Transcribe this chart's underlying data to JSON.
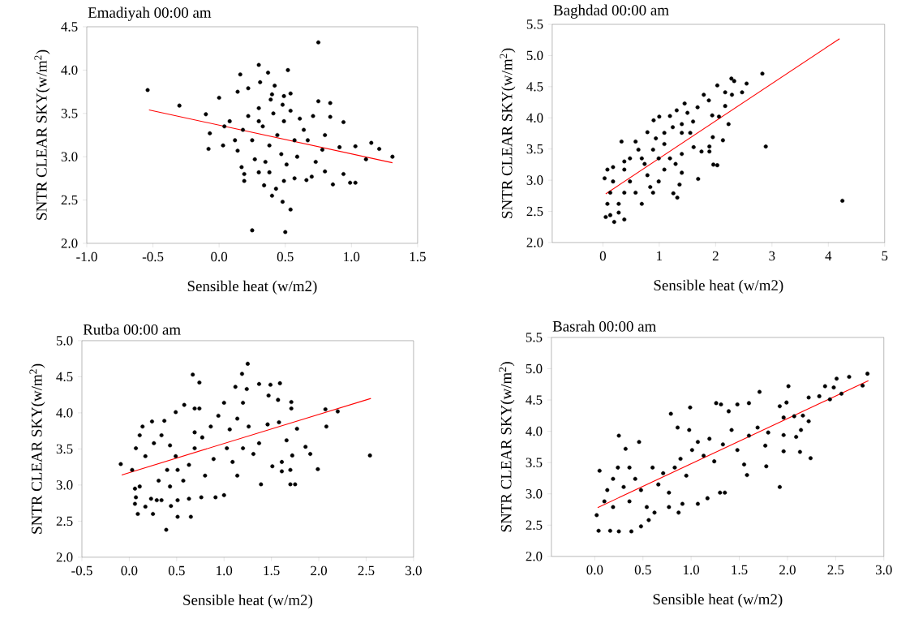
{
  "chart_data": [
    {
      "type": "scatter",
      "title": "Emadiyah 00:00 am",
      "xlabel": "Sensible heat (w/m2)",
      "ylabel": "SNTR CLEAR SKY(w/m$^{2}$)",
      "xlim": [
        -1,
        1.5
      ],
      "ylim": [
        2,
        4.5
      ],
      "xticks": [
        {
          "value": -1,
          "label": "-1.0"
        },
        -0.5,
        {
          "value": 0,
          "label": "0.0"
        },
        0.5,
        {
          "value": 1,
          "label": "1.0"
        },
        1.5
      ],
      "yticks": [
        {
          "value": 2,
          "label": "2.0"
        },
        2.5,
        {
          "value": 3,
          "label": "3.0"
        },
        3.5,
        {
          "value": 4,
          "label": "4.0"
        },
        4.5
      ],
      "series": [
        {
          "color": "#000000",
          "x": [
            -0.54,
            -0.3,
            0.75,
            0.3,
            0.52,
            0.16,
            0.37,
            0.0,
            -0.08,
            -0.07,
            -0.1,
            0.03,
            0.25,
            0.5,
            0.54,
            0.48,
            0.4,
            0.94,
            0.94,
            0.99,
            1.03,
            1.03,
            1.11,
            1.15,
            1.21,
            1.31,
            0.86,
            0.84,
            0.84,
            0.8,
            0.75,
            0.78,
            0.8,
            0.66,
            0.91,
            0.19,
            0.19,
            0.14,
            0.22,
            0.42,
            0.39,
            0.31,
            0.49,
            0.54,
            0.43,
            0.34,
            0.57,
            0.7,
            0.08,
            0.12,
            0.14,
            0.18,
            0.22,
            0.25,
            0.27,
            0.3,
            0.33,
            0.35,
            0.38,
            0.41,
            0.44,
            0.47,
            0.49,
            0.51,
            0.54,
            0.57,
            0.59,
            0.61,
            0.64,
            0.67,
            0.71,
            0.73,
            0.3,
            0.38,
            0.49,
            0.4,
            0.48,
            0.17,
            0.04,
            0.3
          ],
          "values": [
            3.77,
            3.59,
            4.32,
            4.06,
            4.0,
            3.95,
            3.97,
            3.68,
            3.09,
            3.27,
            3.49,
            3.13,
            2.15,
            2.13,
            2.39,
            2.48,
            2.55,
            3.4,
            2.8,
            2.7,
            2.7,
            3.12,
            2.97,
            3.16,
            3.09,
            3.0,
            2.68,
            3.62,
            3.46,
            3.25,
            3.64,
            3.08,
            2.83,
            2.73,
            3.11,
            2.72,
            2.8,
            3.75,
            3.79,
            3.82,
            3.66,
            3.86,
            3.7,
            3.73,
            2.63,
            2.67,
            2.75,
            2.77,
            3.41,
            3.19,
            3.07,
            3.31,
            3.47,
            3.19,
            2.97,
            3.56,
            3.35,
            2.94,
            3.13,
            3.5,
            3.25,
            3.03,
            3.41,
            2.91,
            3.53,
            3.19,
            3.0,
            3.44,
            3.31,
            3.19,
            3.47,
            2.94,
            2.82,
            2.82,
            2.72,
            3.72,
            3.6,
            2.88,
            3.35,
            3.41
          ]
        },
        {
          "type": "line",
          "color": "#ff0000",
          "x": [
            -0.53,
            1.31
          ],
          "values": [
            3.54,
            2.93
          ]
        }
      ]
    },
    {
      "type": "scatter",
      "title": "Baghdad 00:00 am",
      "xlabel": "Sensible heat (w/m2)",
      "ylabel": "SNTR CLEAR SKY(w/m$^{2}$)",
      "xlim": [
        -0.9,
        5
      ],
      "ylim": [
        2,
        5.5
      ],
      "xticks": [
        0,
        1,
        2,
        3,
        4,
        5
      ],
      "yticks": [
        {
          "value": 2,
          "label": "2.0"
        },
        2.5,
        {
          "value": 3,
          "label": "3.0"
        },
        3.5,
        {
          "value": 4,
          "label": "4.0"
        },
        4.5,
        {
          "value": 5,
          "label": "5.0"
        },
        5.5
      ],
      "series": [
        {
          "color": "#000000",
          "x": [
            4.25,
            2.89,
            2.83,
            2.28,
            2.33,
            2.55,
            2.47,
            2.03,
            2.17,
            2.29,
            1.79,
            1.88,
            2.17,
            1.94,
            2.06,
            2.23,
            2.13,
            1.95,
            1.89,
            1.89,
            1.75,
            1.96,
            2.03,
            1.69,
            1.36,
            1.32,
            1.25,
            1.45,
            1.68,
            1.5,
            1.31,
            1.19,
            1.0,
            0.9,
            0.79,
            1.6,
            1.4,
            1.24,
            1.09,
            1.4,
            1.55,
            1.61,
            1.4,
            1.29,
            1.4,
            1.19,
            1.09,
            0.94,
            0.89,
            0.99,
            1.09,
            0.99,
            0.89,
            0.79,
            0.69,
            0.58,
            0.63,
            0.48,
            0.38,
            0.33,
            0.48,
            0.38,
            0.28,
            0.18,
            0.08,
            0.03,
            0.13,
            0.08,
            0.05,
            0.13,
            0.2,
            0.38,
            0.28,
            0.69,
            0.58,
            0.84,
            0.74,
            0.18,
            0.38
          ],
          "values": [
            2.67,
            3.54,
            4.71,
            4.63,
            4.59,
            4.55,
            4.41,
            4.52,
            4.41,
            4.37,
            4.37,
            4.28,
            4.19,
            4.04,
            4.02,
            3.9,
            3.64,
            3.69,
            3.54,
            3.46,
            3.46,
            3.25,
            3.24,
            3.02,
            2.93,
            2.72,
            2.79,
            4.23,
            4.17,
            4.08,
            4.12,
            4.03,
            4.02,
            3.96,
            3.77,
            3.94,
            3.9,
            3.85,
            3.76,
            3.76,
            3.76,
            3.53,
            3.42,
            3.26,
            3.12,
            3.35,
            3.58,
            3.67,
            3.49,
            3.35,
            3.17,
            2.98,
            2.8,
            3.08,
            3.35,
            3.62,
            3.49,
            3.35,
            3.17,
            3.62,
            2.98,
            2.8,
            2.62,
            2.98,
            3.17,
            3.03,
            2.8,
            2.62,
            2.41,
            2.44,
            2.33,
            2.37,
            2.48,
            2.62,
            2.8,
            2.89,
            3.26,
            3.21,
            3.3
          ]
        },
        {
          "type": "line",
          "color": "#ff0000",
          "x": [
            0.05,
            4.2
          ],
          "values": [
            2.78,
            5.27
          ]
        }
      ]
    },
    {
      "type": "scatter",
      "title": "Rutba 00:00 am",
      "xlabel": "Sensible heat (w/m2)",
      "ylabel": "SNTR CLEAR SKY(w/m$^{2}$)",
      "xlim": [
        -0.5,
        3
      ],
      "ylim": [
        2,
        5
      ],
      "xticks": [
        -0.5,
        {
          "value": 0,
          "label": "0.0"
        },
        0.5,
        {
          "value": 1,
          "label": "1.0"
        },
        1.5,
        {
          "value": 2,
          "label": "2.0"
        },
        2.5,
        {
          "value": 3,
          "label": "3.0"
        }
      ],
      "yticks": [
        {
          "value": 2,
          "label": "2.0"
        },
        2.5,
        {
          "value": 3,
          "label": "3.0"
        },
        3.5,
        {
          "value": 4,
          "label": "4.0"
        },
        4.5,
        {
          "value": 5,
          "label": "5.0"
        }
      ],
      "series": [
        {
          "color": "#000000",
          "x": [
            -0.09,
            0.03,
            0.39,
            0.51,
            0.65,
            0.25,
            0.09,
            0.17,
            0.06,
            1.25,
            1.19,
            0.67,
            0.74,
            1.59,
            1.37,
            1.49,
            1.12,
            1.24,
            1.47,
            1.57,
            1.71,
            1.71,
            2.07,
            2.2,
            2.08,
            1.77,
            1.58,
            1.66,
            1.86,
            1.91,
            1.72,
            2.54,
            1.99,
            1.7,
            1.61,
            1.61,
            1.7,
            1.75,
            1.51,
            1.39,
            0.58,
            0.74,
            0.69,
            0.49,
            1.0,
            1.0,
            0.91,
            0.76,
            0.63,
            0.51,
            0.44,
            0.34,
            0.29,
            0.23,
            0.07,
            0.06,
            0.11,
            0.14,
            0.24,
            0.37,
            0.11,
            0.07,
            0.17,
            0.26,
            0.34,
            0.43,
            0.49,
            0.51,
            0.4,
            0.31,
            0.43,
            0.57,
            0.63,
            0.69,
            0.77,
            0.86,
            0.94,
            0.69,
            0.8,
            0.89,
            1.03,
            1.06,
            1.14,
            1.2,
            1.26,
            1.31,
            1.14,
            1.09,
            1.37,
            1.46,
            1.2
          ],
          "values": [
            3.29,
            3.21,
            2.38,
            2.56,
            2.56,
            2.6,
            2.6,
            2.7,
            2.74,
            4.68,
            4.54,
            4.53,
            4.42,
            4.41,
            4.4,
            4.39,
            4.36,
            4.33,
            4.24,
            4.18,
            4.15,
            4.06,
            4.05,
            4.02,
            3.81,
            3.78,
            3.87,
            3.62,
            3.53,
            3.43,
            3.41,
            3.41,
            3.22,
            3.21,
            3.32,
            3.19,
            3.01,
            3.01,
            3.26,
            3.01,
            4.11,
            4.06,
            4.06,
            4.01,
            4.14,
            2.86,
            2.83,
            2.83,
            2.81,
            2.79,
            2.71,
            2.79,
            2.79,
            2.81,
            2.83,
            2.95,
            2.98,
            3.81,
            3.88,
            3.89,
            3.69,
            3.51,
            3.4,
            3.58,
            3.69,
            3.55,
            3.4,
            3.21,
            3.21,
            3.06,
            2.98,
            3.06,
            3.28,
            3.51,
            3.66,
            3.81,
            3.96,
            3.73,
            3.13,
            3.36,
            3.51,
            3.77,
            3.92,
            4.14,
            3.81,
            3.43,
            3.13,
            3.32,
            3.58,
            3.84,
            3.51
          ]
        },
        {
          "type": "line",
          "color": "#ff0000",
          "x": [
            -0.08,
            2.55
          ],
          "values": [
            3.14,
            4.2
          ]
        }
      ]
    },
    {
      "type": "scatter",
      "title": "Basrah 00:00 am",
      "xlabel": "Sensible heat (w/m2)",
      "ylabel": "SNTR CLEAR SKY(w/m$^{2}$)",
      "xlim": [
        -0.45,
        3
      ],
      "ylim": [
        2,
        5.5
      ],
      "xticks": [
        {
          "value": 0,
          "label": "0.0"
        },
        0.5,
        {
          "value": 1,
          "label": "1.0"
        },
        1.5,
        {
          "value": 2,
          "label": "2.0"
        },
        2.5,
        {
          "value": 3,
          "label": "3.0"
        }
      ],
      "yticks": [
        {
          "value": 2,
          "label": "2.0"
        },
        2.5,
        {
          "value": 3,
          "label": "3.0"
        },
        3.5,
        {
          "value": 4,
          "label": "4.0"
        },
        4.5,
        {
          "value": 5,
          "label": "5.0"
        },
        5.5
      ],
      "series": [
        {
          "color": "#000000",
          "x": [
            2.83,
            2.78,
            2.64,
            2.51,
            2.56,
            2.48,
            2.44,
            2.39,
            2.33,
            2.22,
            2.22,
            2.24,
            2.13,
            2.14,
            2.09,
            2.16,
            2.07,
            2.01,
            1.99,
            1.96,
            1.96,
            1.96,
            1.92,
            1.92,
            1.78,
            1.77,
            1.8,
            1.71,
            1.6,
            1.58,
            1.55,
            1.48,
            1.39,
            1.26,
            1.31,
            0.99,
            0.79,
            0.25,
            0.46,
            0.05,
            0.02,
            0.04,
            0.16,
            0.25,
            0.38,
            0.48,
            0.32,
            1.3,
            1.35,
            1.17,
            1.07,
            0.87,
            0.91,
            0.77,
            0.62,
            0.56,
            0.13,
            0.19,
            0.24,
            0.3,
            0.36,
            0.42,
            0.48,
            0.54,
            0.6,
            0.66,
            0.71,
            0.77,
            0.83,
            0.89,
            0.95,
            1.01,
            1.07,
            1.13,
            1.19,
            1.24,
            1.33,
            1.42,
            1.48,
            1.6,
            1.69,
            0.19,
            0.36,
            0.1,
            0.98,
            0.86
          ],
          "values": [
            4.92,
            4.73,
            4.87,
            4.84,
            4.6,
            4.7,
            4.51,
            4.72,
            4.56,
            4.54,
            4.16,
            3.57,
            3.67,
            4.02,
            3.91,
            4.25,
            4.24,
            4.72,
            4.46,
            4.22,
            3.94,
            3.68,
            3.11,
            4.4,
            3.44,
            3.77,
            3.98,
            4.63,
            4.45,
            3.3,
            3.47,
            4.43,
            4.32,
            4.45,
            4.43,
            4.38,
            4.28,
            3.93,
            3.83,
            3.37,
            2.66,
            2.41,
            2.41,
            2.4,
            2.4,
            2.48,
            3.72,
            3.02,
            3.02,
            2.93,
            2.84,
            2.7,
            2.84,
            2.79,
            2.7,
            2.58,
            3.06,
            3.24,
            3.42,
            3.11,
            2.88,
            3.24,
            3.06,
            2.79,
            3.42,
            3.15,
            3.33,
            3.02,
            3.42,
            3.56,
            3.29,
            3.7,
            3.83,
            3.61,
            3.88,
            3.52,
            3.79,
            4.02,
            3.7,
            3.93,
            4.06,
            2.79,
            3.42,
            2.88,
            4.02,
            4.06
          ]
        },
        {
          "type": "line",
          "color": "#ff0000",
          "x": [
            0.03,
            2.84
          ],
          "values": [
            2.78,
            4.81
          ]
        }
      ]
    }
  ]
}
